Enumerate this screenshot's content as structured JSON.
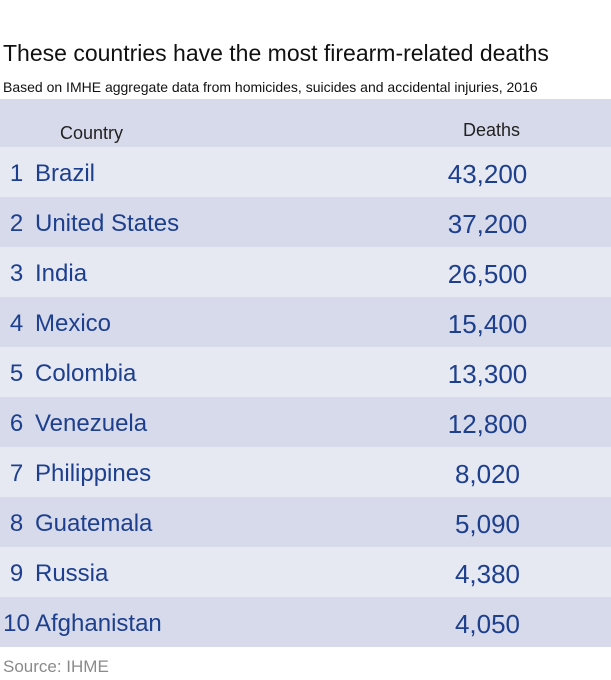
{
  "title": "These countries have the most firearm-related deaths",
  "subtitle": "Based on IMHE aggregate data from homicides, suicides and accidental injuries, 2016",
  "source": "Source: IHME",
  "colors": {
    "text_accent": "#1d3f8e",
    "row_light": "#e6e8f2",
    "row_dark": "#d6daea",
    "source_text": "#8a8a8a"
  },
  "chart_data": {
    "type": "table",
    "title": "These countries have the most firearm-related deaths",
    "subtitle": "Based on IMHE aggregate data from homicides, suicides and accidental injuries, 2016",
    "columns": [
      "Country",
      "Deaths"
    ],
    "rows": [
      {
        "rank": "1",
        "country": "Brazil",
        "deaths": "43,200"
      },
      {
        "rank": "2",
        "country": "United States",
        "deaths": "37,200"
      },
      {
        "rank": "3",
        "country": "India",
        "deaths": "26,500"
      },
      {
        "rank": "4",
        "country": "Mexico",
        "deaths": "15,400"
      },
      {
        "rank": "5",
        "country": "Colombia",
        "deaths": "13,300"
      },
      {
        "rank": "6",
        "country": "Venezuela",
        "deaths": "12,800"
      },
      {
        "rank": "7",
        "country": "Philippines",
        "deaths": "8,020"
      },
      {
        "rank": "8",
        "country": "Guatemala",
        "deaths": "5,090"
      },
      {
        "rank": "9",
        "country": "Russia",
        "deaths": "4,380"
      },
      {
        "rank": "10",
        "country": "Afghanistan",
        "deaths": "4,050"
      }
    ],
    "values": [
      43200,
      37200,
      26500,
      15400,
      13300,
      12800,
      8020,
      5090,
      4380,
      4050
    ],
    "source": "Source: IHME"
  }
}
